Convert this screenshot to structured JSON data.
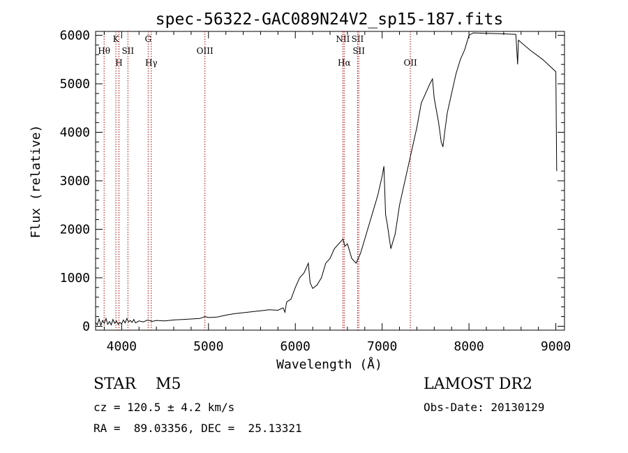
{
  "chart_data": {
    "type": "line",
    "title": "spec-56322-GAC089N24V2_sp15-187.fits",
    "xlabel": "Wavelength (Å)",
    "ylabel": "Flux (relative)",
    "xlim": [
      3700,
      9100
    ],
    "ylim": [
      -80,
      6080
    ],
    "xticks": [
      4000,
      5000,
      6000,
      7000,
      8000,
      9000
    ],
    "yticks": [
      0,
      1000,
      2000,
      3000,
      4000,
      5000,
      6000
    ],
    "series": [
      {
        "values": [
          [
            3700,
            80
          ],
          [
            3720,
            30
          ],
          [
            3740,
            150
          ],
          [
            3760,
            20
          ],
          [
            3780,
            120
          ],
          [
            3800,
            60
          ],
          [
            3820,
            160
          ],
          [
            3840,
            40
          ],
          [
            3860,
            100
          ],
          [
            3880,
            30
          ],
          [
            3900,
            140
          ],
          [
            3920,
            60
          ],
          [
            3940,
            110
          ],
          [
            3960,
            40
          ],
          [
            3980,
            80
          ],
          [
            4000,
            50
          ],
          [
            4020,
            130
          ],
          [
            4040,
            70
          ],
          [
            4060,
            160
          ],
          [
            4080,
            90
          ],
          [
            4100,
            120
          ],
          [
            4120,
            80
          ],
          [
            4140,
            140
          ],
          [
            4160,
            70
          ],
          [
            4200,
            110
          ],
          [
            4250,
            90
          ],
          [
            4300,
            130
          ],
          [
            4350,
            100
          ],
          [
            4400,
            120
          ],
          [
            4500,
            110
          ],
          [
            4600,
            130
          ],
          [
            4700,
            140
          ],
          [
            4800,
            150
          ],
          [
            4900,
            160
          ],
          [
            4960,
            200
          ],
          [
            5000,
            180
          ],
          [
            5100,
            190
          ],
          [
            5200,
            230
          ],
          [
            5300,
            260
          ],
          [
            5400,
            280
          ],
          [
            5500,
            300
          ],
          [
            5600,
            320
          ],
          [
            5700,
            340
          ],
          [
            5800,
            330
          ],
          [
            5860,
            380
          ],
          [
            5880,
            290
          ],
          [
            5900,
            500
          ],
          [
            5950,
            560
          ],
          [
            6000,
            800
          ],
          [
            6050,
            1000
          ],
          [
            6100,
            1100
          ],
          [
            6150,
            1300
          ],
          [
            6170,
            900
          ],
          [
            6200,
            780
          ],
          [
            6250,
            850
          ],
          [
            6300,
            1000
          ],
          [
            6350,
            1300
          ],
          [
            6400,
            1400
          ],
          [
            6450,
            1600
          ],
          [
            6500,
            1700
          ],
          [
            6550,
            1800
          ],
          [
            6570,
            1650
          ],
          [
            6600,
            1700
          ],
          [
            6650,
            1400
          ],
          [
            6700,
            1300
          ],
          [
            6750,
            1500
          ],
          [
            6800,
            1800
          ],
          [
            6850,
            2100
          ],
          [
            6900,
            2400
          ],
          [
            6950,
            2700
          ],
          [
            7000,
            3100
          ],
          [
            7020,
            3300
          ],
          [
            7040,
            2300
          ],
          [
            7060,
            2100
          ],
          [
            7100,
            1600
          ],
          [
            7150,
            1900
          ],
          [
            7200,
            2500
          ],
          [
            7250,
            2900
          ],
          [
            7300,
            3300
          ],
          [
            7350,
            3700
          ],
          [
            7400,
            4100
          ],
          [
            7450,
            4600
          ],
          [
            7500,
            4800
          ],
          [
            7550,
            5000
          ],
          [
            7580,
            5100
          ],
          [
            7600,
            4700
          ],
          [
            7650,
            4200
          ],
          [
            7680,
            3800
          ],
          [
            7700,
            3700
          ],
          [
            7720,
            4000
          ],
          [
            7750,
            4400
          ],
          [
            7800,
            4800
          ],
          [
            7850,
            5200
          ],
          [
            7900,
            5500
          ],
          [
            7950,
            5700
          ],
          [
            8000,
            6000
          ],
          [
            8050,
            6050
          ],
          [
            8200,
            6040
          ],
          [
            8400,
            6030
          ],
          [
            8540,
            6020
          ],
          [
            8560,
            5400
          ],
          [
            8570,
            5900
          ],
          [
            8700,
            5700
          ],
          [
            8850,
            5500
          ],
          [
            9000,
            5250
          ],
          [
            9010,
            3200
          ]
        ]
      }
    ],
    "lines": [
      {
        "wavelength": 3798,
        "labels": [
          "Hθ"
        ]
      },
      {
        "wavelength": 3934,
        "labels": [
          "K"
        ]
      },
      {
        "wavelength": 3969,
        "labels": [
          "H"
        ]
      },
      {
        "wavelength": 4072,
        "labels": [
          "SII"
        ]
      },
      {
        "wavelength": 4305,
        "labels": [
          "G"
        ]
      },
      {
        "wavelength": 4341,
        "labels": [
          "Hγ"
        ]
      },
      {
        "wavelength": 4959,
        "labels": [
          "OIII"
        ]
      },
      {
        "wavelength": 6548,
        "labels": [
          "NII"
        ]
      },
      {
        "wavelength": 6563,
        "labels": [
          "Hα"
        ]
      },
      {
        "wavelength": 6717,
        "labels": [
          "SII"
        ]
      },
      {
        "wavelength": 6731,
        "labels": [
          "SII"
        ]
      },
      {
        "wavelength": 7325,
        "labels": [
          "OII"
        ]
      }
    ],
    "line_color": "#aa0000",
    "grid": false
  },
  "info": {
    "class_text": "STAR    M5",
    "survey_text": "LAMOST DR2",
    "cz_text": "cz = 120.5 ± 4.2 km/s",
    "obs_text": "Obs-Date: 20130129",
    "radec_text": "RA =  89.03356, DEC =  25.13321"
  }
}
